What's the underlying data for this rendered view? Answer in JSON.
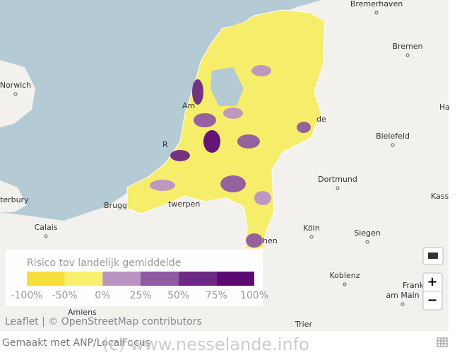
{
  "map": {
    "places": [
      {
        "label": "Bremerhaven"
      },
      {
        "label": "Bremen"
      },
      {
        "label": "Ha"
      },
      {
        "label": "Bielefeld"
      },
      {
        "label": "Norwich"
      },
      {
        "label": "Dortmund"
      },
      {
        "label": "Kass"
      },
      {
        "label": "terbury"
      },
      {
        "label": "Brugg"
      },
      {
        "label": "twerpen"
      },
      {
        "label": "Calais"
      },
      {
        "label": "Köln"
      },
      {
        "label": "Siegen"
      },
      {
        "label": "Koblenz"
      },
      {
        "label": "Frankfurt"
      },
      {
        "label": "am Main"
      },
      {
        "label": "Amiens"
      },
      {
        "label": "Trier"
      },
      {
        "label": "hen"
      },
      {
        "label": "de"
      },
      {
        "label": "Am"
      },
      {
        "label": "R"
      }
    ],
    "attribution": "Leaflet | © OpenStreetMap contributors"
  },
  "legend": {
    "title": "Risico tov landelijk gemiddelde",
    "labels": [
      "-100%",
      "-50%",
      "0%",
      "25%",
      "50%",
      "75%",
      "100%"
    ],
    "colors": [
      "#f6df3a",
      "#f8ef6c",
      "#b993c2",
      "#8f5aa1",
      "#6c2a84",
      "#5b0a74"
    ]
  },
  "controls": {
    "zoom_in": "+",
    "zoom_out": "−"
  },
  "footer": {
    "credit": "Gemaakt met ANP/LocalFocus",
    "watermark": "(c) www.nesselande.info"
  }
}
